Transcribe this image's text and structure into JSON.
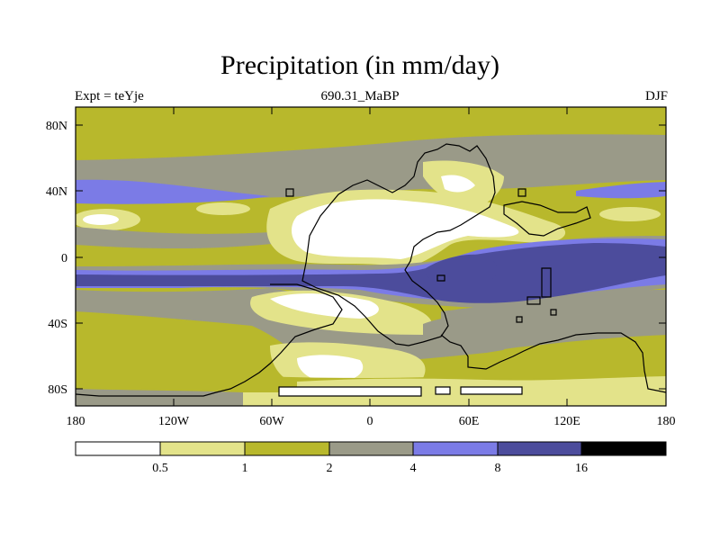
{
  "title": "Precipitation (in mm/day)",
  "subtitle": {
    "left": "Expt = teYje",
    "center": "690.31_MaBP",
    "right": "DJF"
  },
  "axes": {
    "x_ticks": [
      "180",
      "120W",
      "60W",
      "0",
      "60E",
      "120E",
      "180"
    ],
    "y_ticks": [
      "80N",
      "40N",
      "0",
      "40S",
      "80S"
    ]
  },
  "legend": {
    "colors": [
      "#ffffff",
      "#e3e38a",
      "#b8b82c",
      "#9a9a88",
      "#7b7be6",
      "#4c4c9c",
      "#000000"
    ],
    "labels": [
      "0.5",
      "1",
      "2",
      "4",
      "8",
      "16"
    ]
  },
  "palette": {
    "lt05": "#ffffff",
    "p05_1": "#e3e38a",
    "p1_2": "#b8b82c",
    "p2_4": "#9a9a88",
    "p4_8": "#7b7be6",
    "p8_16": "#4c4c9c"
  }
}
